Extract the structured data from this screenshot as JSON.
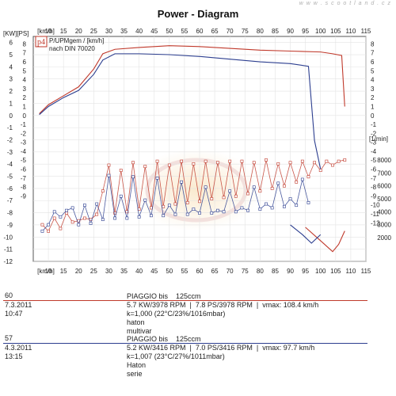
{
  "watermark": "w w w . s c o o t l a n d . c z",
  "chart_data": {
    "type": "line",
    "title": "Power - Diagram",
    "x_unit_top": "[km/h]",
    "x_unit_bottom": "[km/h]",
    "x_ticks": [
      10,
      15,
      20,
      25,
      30,
      35,
      40,
      45,
      50,
      55,
      60,
      65,
      70,
      75,
      80,
      85,
      90,
      95,
      100,
      105,
      110,
      115
    ],
    "xlim": [
      5,
      115
    ],
    "left_axis_labels": "[KW][PS]",
    "left_ticks_kw": [
      6,
      5,
      4,
      3,
      2,
      1,
      0,
      -1,
      -2,
      -3,
      -4,
      -5,
      -6,
      -7,
      -8,
      -9,
      -10,
      -11,
      -12
    ],
    "left_ticks_ps": [
      8,
      7,
      6,
      5,
      4,
      3,
      2,
      1,
      0,
      -1,
      -2,
      -3,
      -4,
      -5,
      -6,
      -7,
      -8,
      -9
    ],
    "ylim_kw": [
      -12,
      6.5
    ],
    "right_ticks_ps": [
      8,
      7,
      6,
      5,
      4,
      3,
      2,
      1,
      0,
      -1,
      -2,
      -3,
      -4,
      -5,
      -6,
      -7,
      -8,
      -9,
      -10,
      -11,
      -12
    ],
    "right_rpm_unit": "[1/min]",
    "right_ticks_rpm": [
      8000,
      7000,
      6000,
      5000,
      4000,
      3000,
      2000
    ],
    "legend": {
      "badge": "p4",
      "line1": "P/UPMgem / [km/h]",
      "line2": "nach DIN 70020"
    },
    "series": [
      {
        "id": "run60",
        "color": "#c0392b",
        "ps": [
          [
            7,
            0.2
          ],
          [
            10,
            1.2
          ],
          [
            15,
            2.2
          ],
          [
            20,
            3.2
          ],
          [
            25,
            5.2
          ],
          [
            28,
            6.9
          ],
          [
            32,
            7.4
          ],
          [
            40,
            7.6
          ],
          [
            50,
            7.8
          ],
          [
            60,
            7.7
          ],
          [
            70,
            7.5
          ],
          [
            80,
            7.3
          ],
          [
            90,
            7.2
          ],
          [
            100,
            7.1
          ],
          [
            104,
            6.9
          ],
          [
            107,
            6.7
          ],
          [
            108,
            1.0
          ]
        ],
        "kw_loss": [
          [
            95,
            -9.2
          ],
          [
            100,
            -10.3
          ],
          [
            104,
            -11.2
          ],
          [
            106,
            -10.6
          ],
          [
            108,
            -9.5
          ]
        ],
        "rpm": [
          [
            8,
            3000
          ],
          [
            10,
            2500
          ],
          [
            12,
            3500
          ],
          [
            14,
            2700
          ],
          [
            16,
            3900
          ],
          [
            18,
            3200
          ],
          [
            20,
            3300
          ],
          [
            22,
            3500
          ],
          [
            24,
            3400
          ],
          [
            26,
            3800
          ],
          [
            28,
            5600
          ],
          [
            30,
            7600
          ],
          [
            32,
            3900
          ],
          [
            34,
            7200
          ],
          [
            36,
            4000
          ],
          [
            38,
            7800
          ],
          [
            40,
            4200
          ],
          [
            42,
            7500
          ],
          [
            44,
            4300
          ],
          [
            46,
            7900
          ],
          [
            48,
            4400
          ],
          [
            50,
            7600
          ],
          [
            52,
            4600
          ],
          [
            54,
            7900
          ],
          [
            56,
            4700
          ],
          [
            58,
            7700
          ],
          [
            60,
            4800
          ],
          [
            62,
            7900
          ],
          [
            64,
            5000
          ],
          [
            66,
            7800
          ],
          [
            68,
            5100
          ],
          [
            70,
            7900
          ],
          [
            72,
            5200
          ],
          [
            74,
            7900
          ],
          [
            76,
            5400
          ],
          [
            78,
            7800
          ],
          [
            80,
            5600
          ],
          [
            82,
            8000
          ],
          [
            84,
            5800
          ],
          [
            86,
            7700
          ],
          [
            88,
            6000
          ],
          [
            90,
            7800
          ],
          [
            92,
            6300
          ],
          [
            94,
            7900
          ],
          [
            96,
            6700
          ],
          [
            98,
            7800
          ],
          [
            100,
            7200
          ],
          [
            102,
            7900
          ],
          [
            104,
            7600
          ],
          [
            106,
            7900
          ],
          [
            108,
            8000
          ]
        ]
      },
      {
        "id": "run57",
        "color": "#2c3e8f",
        "ps": [
          [
            7,
            0.1
          ],
          [
            10,
            1.0
          ],
          [
            15,
            2.0
          ],
          [
            20,
            2.8
          ],
          [
            25,
            4.6
          ],
          [
            28,
            6.2
          ],
          [
            32,
            6.9
          ],
          [
            40,
            6.9
          ],
          [
            50,
            6.8
          ],
          [
            60,
            6.6
          ],
          [
            70,
            6.3
          ],
          [
            80,
            6.0
          ],
          [
            90,
            5.8
          ],
          [
            96,
            5.5
          ],
          [
            98,
            -2.8
          ],
          [
            100,
            -6.0
          ]
        ],
        "kw_loss": [
          [
            90,
            -9.0
          ],
          [
            94,
            -9.8
          ],
          [
            97,
            -10.5
          ],
          [
            100,
            -9.8
          ]
        ],
        "rpm": [
          [
            8,
            2500
          ],
          [
            10,
            3000
          ],
          [
            12,
            4000
          ],
          [
            14,
            3600
          ],
          [
            16,
            4100
          ],
          [
            18,
            4300
          ],
          [
            20,
            3000
          ],
          [
            22,
            4500
          ],
          [
            24,
            3100
          ],
          [
            26,
            4600
          ],
          [
            28,
            3400
          ],
          [
            30,
            6800
          ],
          [
            32,
            3500
          ],
          [
            34,
            5200
          ],
          [
            36,
            3500
          ],
          [
            38,
            6700
          ],
          [
            40,
            3600
          ],
          [
            42,
            4900
          ],
          [
            44,
            3700
          ],
          [
            46,
            6600
          ],
          [
            48,
            3700
          ],
          [
            50,
            4500
          ],
          [
            52,
            3800
          ],
          [
            54,
            6300
          ],
          [
            56,
            3800
          ],
          [
            58,
            4200
          ],
          [
            60,
            3900
          ],
          [
            62,
            5900
          ],
          [
            64,
            3900
          ],
          [
            66,
            4100
          ],
          [
            68,
            4000
          ],
          [
            70,
            5600
          ],
          [
            72,
            4000
          ],
          [
            74,
            4300
          ],
          [
            76,
            4100
          ],
          [
            78,
            5900
          ],
          [
            80,
            4200
          ],
          [
            82,
            4600
          ],
          [
            84,
            4300
          ],
          [
            86,
            6200
          ],
          [
            88,
            4400
          ],
          [
            90,
            5000
          ],
          [
            92,
            4500
          ],
          [
            94,
            6500
          ],
          [
            96,
            4700
          ]
        ]
      }
    ]
  },
  "runs": [
    {
      "id": "60",
      "date": "7.3.2011   10:47",
      "color": "#c0392b",
      "line1": "PIAGGIO bis    125ccm",
      "line2": "5.7 KW/3978 RPM  |  7.8 PS/3978 RPM  |  vmax: 108.4 km/h",
      "line3": "k=1,000 (22°C/23%/1016mbar)",
      "line4": "haton",
      "line5": "multivar"
    },
    {
      "id": "57",
      "date": "4.3.2011   13:15",
      "color": "#2c3e8f",
      "line1": "PIAGGIO bis    125ccm",
      "line2": "5.2 KW/3416 RPM  |  7.0 PS/3416 RPM  |  vmax: 97.7 km/h",
      "line3": "k=1,007 (23°C/27%/1011mbar)",
      "line4": "Haton",
      "line5": "serie"
    }
  ]
}
